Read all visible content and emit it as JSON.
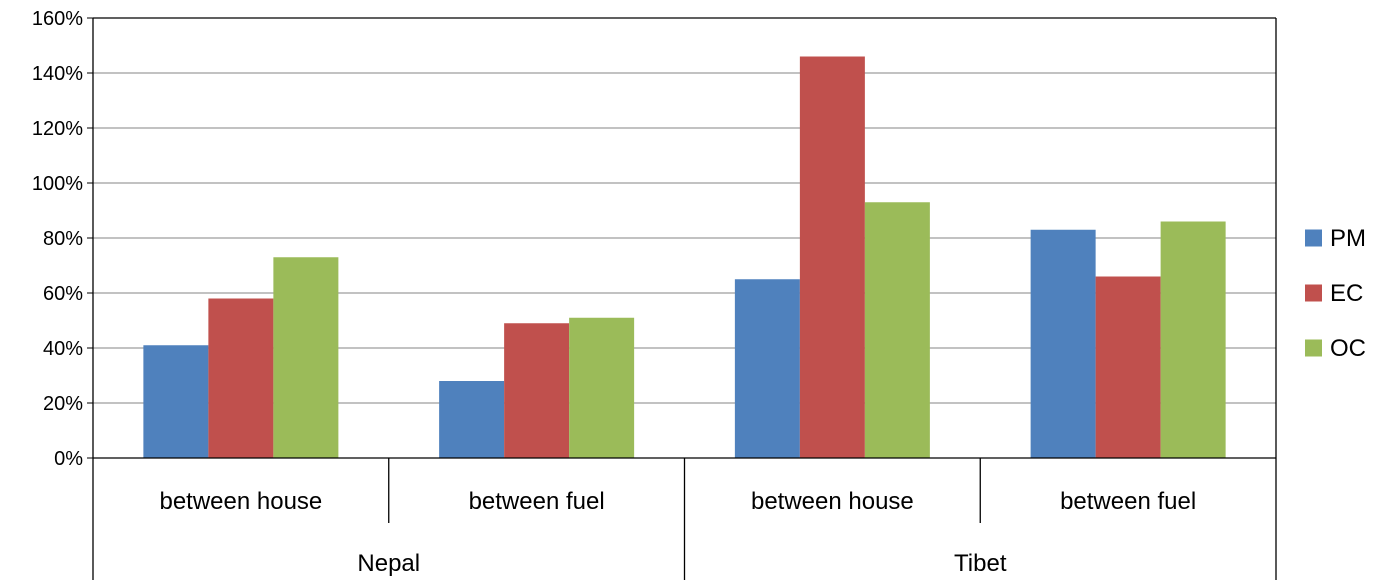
{
  "chart_data": {
    "type": "bar",
    "title": "",
    "xlabel": "",
    "ylabel": "",
    "ylim": [
      0,
      160
    ],
    "ytick_step": 20,
    "ytick_labels": [
      "0%",
      "20%",
      "40%",
      "60%",
      "80%",
      "100%",
      "120%",
      "140%",
      "160%"
    ],
    "groups": [
      "Nepal",
      "Tibet"
    ],
    "categories": [
      "between house",
      "between fuel",
      "between house",
      "between fuel"
    ],
    "category_group": [
      0,
      0,
      1,
      1
    ],
    "grid": true,
    "legend_position": "right",
    "series": [
      {
        "name": "PM",
        "color": "#4F81BD",
        "values": [
          41,
          28,
          65,
          83
        ]
      },
      {
        "name": "EC",
        "color": "#C0504D",
        "values": [
          58,
          49,
          146,
          66
        ]
      },
      {
        "name": "OC",
        "color": "#9BBB59",
        "values": [
          73,
          51,
          93,
          86
        ]
      }
    ]
  }
}
